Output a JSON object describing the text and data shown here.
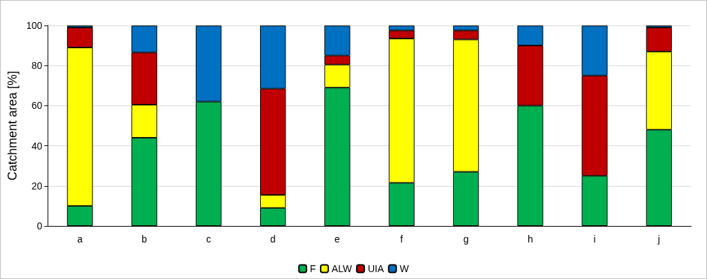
{
  "chart_data": {
    "type": "bar",
    "stacked": true,
    "ylabel": "Catchment area [%]",
    "categories": [
      "a",
      "b",
      "c",
      "d",
      "e",
      "f",
      "g",
      "h",
      "i",
      "j"
    ],
    "series": [
      {
        "name": "F",
        "color": "#00b050",
        "values": [
          10,
          44,
          62,
          9,
          69,
          21.5,
          27,
          60,
          25,
          48
        ]
      },
      {
        "name": "ALW",
        "color": "#ffff00",
        "values": [
          79,
          16.5,
          null,
          6.5,
          11.5,
          72,
          66,
          null,
          null,
          39
        ]
      },
      {
        "name": "UIA",
        "color": "#c00000",
        "values": [
          10,
          26,
          null,
          53,
          4.5,
          4,
          4.5,
          30,
          50,
          12
        ]
      },
      {
        "name": "W",
        "color": "#0070c0",
        "values": [
          1,
          13.5,
          38,
          31.5,
          15,
          2.5,
          2.5,
          10,
          25,
          1
        ]
      }
    ],
    "ylim": [
      0,
      100
    ],
    "yticks": [
      0,
      20,
      40,
      60,
      80,
      100
    ],
    "grid": "y",
    "legend": "bottom"
  }
}
